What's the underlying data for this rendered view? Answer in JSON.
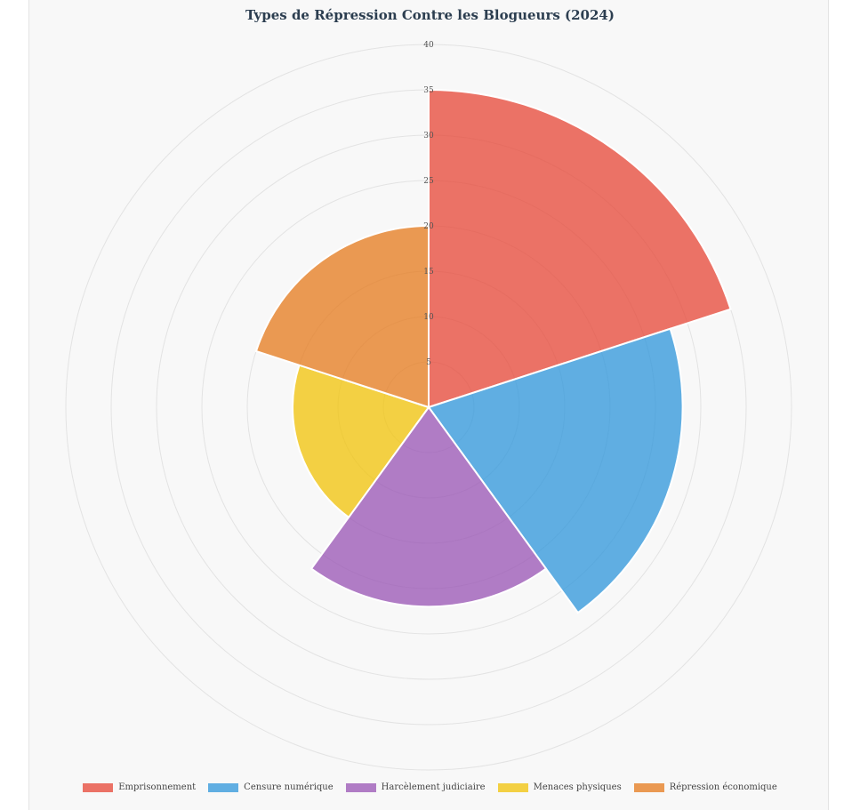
{
  "chart_data": {
    "type": "polarArea",
    "title": "Types de Répression Contre les Blogueurs (2024)",
    "categories": [
      "Emprisonnement",
      "Censure numérique",
      "Harcèlement judiciaire",
      "Menaces physiques",
      "Répression économique"
    ],
    "values": [
      35,
      28,
      22,
      15,
      20
    ],
    "colors": [
      "#e74c3c",
      "#3498db",
      "#9b59b6",
      "#f1c40f",
      "#e67e22"
    ],
    "r_ticks": [
      "5",
      "10",
      "15",
      "20",
      "25",
      "30",
      "35",
      "40"
    ],
    "rlim": [
      0,
      40
    ],
    "legend_position": "bottom",
    "grid": true
  }
}
